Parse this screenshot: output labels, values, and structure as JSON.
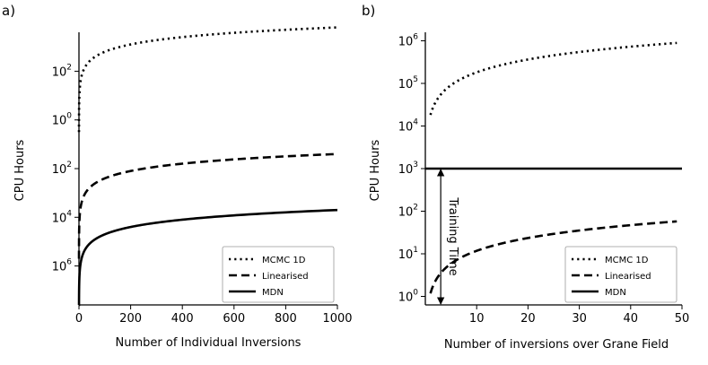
{
  "chart_data": [
    {
      "panel_label": "a)",
      "type": "line",
      "xlabel": "Number of Individual Inversions",
      "ylabel": "CPU Hours",
      "xscale": "linear",
      "yscale": "log",
      "xlim": [
        0,
        1000
      ],
      "ylim": [
        -7.6,
        3.6
      ],
      "x_ticks": [
        {
          "value": 0,
          "label": "0"
        },
        {
          "value": 200,
          "label": "200"
        },
        {
          "value": 400,
          "label": "400"
        },
        {
          "value": 600,
          "label": "600"
        },
        {
          "value": 800,
          "label": "800"
        },
        {
          "value": 1000,
          "label": "1000"
        }
      ],
      "y_ticks": [
        {
          "value": 2,
          "base": "10",
          "exp": "2"
        },
        {
          "value": 0,
          "base": "10",
          "exp": "0"
        },
        {
          "value": -2,
          "base": "10",
          "exp": "2"
        },
        {
          "value": -4,
          "base": "10",
          "exp": "4"
        },
        {
          "value": -6,
          "base": "10",
          "exp": "6"
        }
      ],
      "series": [
        {
          "name": "MCMC 1D",
          "style": "dotted",
          "per_unit_log10": 0.8
        },
        {
          "name": "Linearised",
          "style": "dashed",
          "per_unit_log10": -4.4
        },
        {
          "name": "MDN",
          "style": "solid",
          "per_unit_log10": -6.7
        }
      ],
      "legend": {
        "position": "bottom-right",
        "entries": [
          "MCMC 1D",
          "Linearised",
          "MDN"
        ]
      }
    },
    {
      "panel_label": "b)",
      "type": "line",
      "xlabel": "Number of inversions over Grane Field",
      "ylabel": "CPU Hours",
      "xscale": "linear",
      "yscale": "log",
      "xlim": [
        0,
        50
      ],
      "ylim": [
        -0.2,
        6.2
      ],
      "x_ticks": [
        {
          "value": 10,
          "label": "10"
        },
        {
          "value": 20,
          "label": "20"
        },
        {
          "value": 30,
          "label": "30"
        },
        {
          "value": 40,
          "label": "40"
        },
        {
          "value": 50,
          "label": "50"
        }
      ],
      "y_ticks": [
        {
          "value": 0,
          "base": "10",
          "exp": "0"
        },
        {
          "value": 1,
          "base": "10",
          "exp": "1"
        },
        {
          "value": 2,
          "base": "10",
          "exp": "2"
        },
        {
          "value": 3,
          "base": "10",
          "exp": "3"
        },
        {
          "value": 4,
          "base": "10",
          "exp": "4"
        },
        {
          "value": 5,
          "base": "10",
          "exp": "5"
        },
        {
          "value": 6,
          "base": "10",
          "exp": "6"
        }
      ],
      "series": [
        {
          "name": "MCMC 1D",
          "style": "dotted",
          "x_start": 1,
          "x_end": 49,
          "per_unit_log10": 4.26
        },
        {
          "name": "Linearised",
          "style": "dashed",
          "x_start": 1,
          "x_end": 49,
          "per_unit_log10": 0.07
        },
        {
          "name": "MDN",
          "style": "solid",
          "x_start": 0,
          "x_end": 50,
          "constant_log10": 3
        }
      ],
      "annotation": {
        "text": "Training Time",
        "x": 3,
        "y_from_log10": -0.2,
        "y_to_log10": 3
      },
      "legend": {
        "position": "bottom-right",
        "entries": [
          "MCMC 1D",
          "Linearised",
          "MDN"
        ]
      }
    }
  ]
}
